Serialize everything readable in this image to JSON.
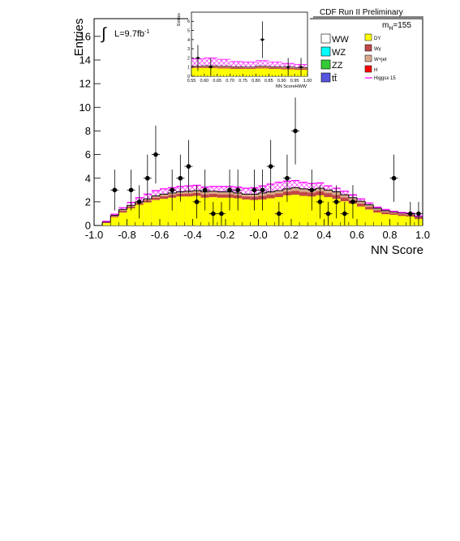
{
  "header": {
    "title": "CDF Run II Preliminary",
    "luminosity": "L=9.7fb",
    "luminosity_sup": "-1",
    "mass_prefix": "m",
    "mass_sub": "H",
    "mass_value": "=155"
  },
  "chart_data": [
    {
      "type": "bar",
      "xlabel": "NN Score",
      "ylabel": "Entries",
      "xlim": [
        -1.0,
        1.0
      ],
      "ylim": [
        0,
        17.5
      ],
      "x_ticks": [
        "-1.0",
        "-0.8",
        "-0.6",
        "-0.4",
        "-0.2",
        "-0.0",
        "0.2",
        "0.4",
        "0.6",
        "0.8",
        "1.0"
      ],
      "y_ticks": [
        "0",
        "2",
        "4",
        "6",
        "8",
        "10",
        "12",
        "14",
        "16"
      ],
      "bin_width": 0.05,
      "bin_edges_start": -1.0,
      "stack_total": [
        0.0,
        0.3,
        0.85,
        1.35,
        1.7,
        2.0,
        2.25,
        2.5,
        2.65,
        2.75,
        2.85,
        2.9,
        2.95,
        2.85,
        2.9,
        2.85,
        2.85,
        2.75,
        2.65,
        2.65,
        2.75,
        2.85,
        2.95,
        3.1,
        3.2,
        3.1,
        3.05,
        3.15,
        3.0,
        2.85,
        2.6,
        2.35,
        2.05,
        1.75,
        1.45,
        1.25,
        1.15,
        1.05,
        1.0,
        0.75
      ],
      "stack_dy": [
        0.0,
        0.2,
        0.7,
        1.1,
        1.45,
        1.75,
        1.95,
        2.15,
        2.25,
        2.35,
        2.45,
        2.45,
        2.5,
        2.35,
        2.4,
        2.35,
        2.35,
        2.3,
        2.2,
        2.15,
        2.2,
        2.3,
        2.4,
        2.55,
        2.6,
        2.5,
        2.45,
        2.55,
        2.4,
        2.25,
        2.05,
        1.85,
        1.6,
        1.35,
        1.1,
        0.95,
        0.9,
        0.8,
        0.75,
        0.55
      ],
      "signal": [
        0.0,
        0.35,
        0.95,
        1.5,
        1.95,
        2.35,
        2.65,
        2.95,
        3.1,
        3.2,
        3.3,
        3.35,
        3.4,
        3.25,
        3.3,
        3.3,
        3.3,
        3.25,
        3.15,
        3.2,
        3.35,
        3.5,
        3.65,
        3.75,
        3.8,
        3.65,
        3.55,
        3.6,
        3.35,
        3.15,
        2.9,
        2.6,
        2.25,
        1.9,
        1.55,
        1.35,
        1.2,
        1.1,
        1.05,
        0.8
      ],
      "data_points": [
        {
          "x": -0.875,
          "y": 3,
          "err": 1.73
        },
        {
          "x": -0.775,
          "y": 3,
          "err": 1.73
        },
        {
          "x": -0.725,
          "y": 2,
          "err": 1.41
        },
        {
          "x": -0.675,
          "y": 4,
          "err": 2.0
        },
        {
          "x": -0.625,
          "y": 6,
          "err": 2.45
        },
        {
          "x": -0.525,
          "y": 3,
          "err": 1.73
        },
        {
          "x": -0.475,
          "y": 4,
          "err": 2.0
        },
        {
          "x": -0.425,
          "y": 5,
          "err": 2.24
        },
        {
          "x": -0.375,
          "y": 2,
          "err": 1.41
        },
        {
          "x": -0.325,
          "y": 3,
          "err": 1.73
        },
        {
          "x": -0.275,
          "y": 1,
          "err": 1.0
        },
        {
          "x": -0.225,
          "y": 1,
          "err": 1.0
        },
        {
          "x": -0.175,
          "y": 3,
          "err": 1.73
        },
        {
          "x": -0.125,
          "y": 3,
          "err": 1.73
        },
        {
          "x": -0.025,
          "y": 3,
          "err": 1.73
        },
        {
          "x": 0.025,
          "y": 3,
          "err": 1.73
        },
        {
          "x": 0.075,
          "y": 5,
          "err": 2.24
        },
        {
          "x": 0.125,
          "y": 1,
          "err": 1.0
        },
        {
          "x": 0.175,
          "y": 4,
          "err": 2.0
        },
        {
          "x": 0.225,
          "y": 8,
          "err": 2.83
        },
        {
          "x": 0.325,
          "y": 3,
          "err": 1.73
        },
        {
          "x": 0.375,
          "y": 2,
          "err": 1.41
        },
        {
          "x": 0.425,
          "y": 1,
          "err": 1.0
        },
        {
          "x": 0.475,
          "y": 2,
          "err": 1.41
        },
        {
          "x": 0.525,
          "y": 1,
          "err": 1.0
        },
        {
          "x": 0.575,
          "y": 2,
          "err": 1.41
        },
        {
          "x": 0.825,
          "y": 4,
          "err": 2.0
        },
        {
          "x": 0.925,
          "y": 1,
          "err": 1.0
        },
        {
          "x": 0.975,
          "y": 1,
          "err": 1.0
        }
      ],
      "legend": [
        "WW",
        "WZ",
        "ZZ",
        "tt̄",
        "DY",
        "Wγ",
        "W+jet",
        "H",
        "Higgsx 15"
      ]
    },
    {
      "type": "bar",
      "name": "inset",
      "xlabel": "NN ScoreHWW",
      "ylabel": "Entries",
      "xlim": [
        0.55,
        1.0
      ],
      "ylim": [
        0,
        7
      ],
      "x_ticks": [
        "0.55",
        "0.60",
        "0.65",
        "0.70",
        "0.75",
        "0.80",
        "0.85",
        "0.90",
        "0.95",
        "1.00"
      ],
      "y_ticks": [
        "0",
        "1",
        "2",
        "3",
        "4",
        "5",
        "6"
      ],
      "bin_width": 0.05,
      "bin_edges_start": 0.55,
      "stack_total": [
        1.1,
        1.15,
        1.1,
        1.05,
        1.0,
        1.1,
        1.05,
        1.0,
        0.95
      ],
      "stack_dy": [
        0.9,
        0.9,
        0.85,
        0.8,
        0.8,
        0.85,
        0.8,
        0.75,
        0.7
      ],
      "signal": [
        1.9,
        2.0,
        1.85,
        1.6,
        1.55,
        1.7,
        1.55,
        1.4,
        1.3
      ],
      "data_points": [
        {
          "x": 0.575,
          "y": 2,
          "err": 1.41
        },
        {
          "x": 0.625,
          "y": 1,
          "err": 1.0
        },
        {
          "x": 0.825,
          "y": 4,
          "err": 2.0
        },
        {
          "x": 0.925,
          "y": 1,
          "err": 1.0
        },
        {
          "x": 0.975,
          "y": 1,
          "err": 1.0
        }
      ]
    }
  ],
  "legend_colors": {
    "WW": "#ffffff",
    "WZ": "#00ffff",
    "ZZ": "#33cc33",
    "tt": "#5555dd",
    "DY": "#ffff00",
    "Wgamma": "#c04848",
    "Wjet": "#d9a88b",
    "H": "#ff0000",
    "Higgsx15": "#ff00ff"
  }
}
